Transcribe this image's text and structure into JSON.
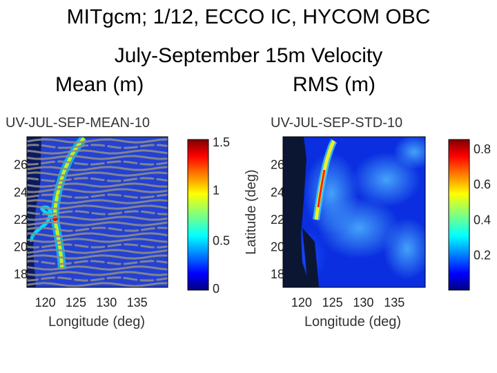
{
  "slide": {
    "title_line1": "MITgcm; 1/12, ECCO IC, HYCOM OBC",
    "title_line2": "July-September 15m Velocity",
    "subtitle_mean": "Mean (m)",
    "subtitle_rms": "RMS (m)"
  },
  "colors": {
    "jet": [
      "#00007f",
      "#0000ff",
      "#007fff",
      "#00ffff",
      "#7fff7f",
      "#ffff00",
      "#ff7f00",
      "#ff0000",
      "#7f0000"
    ],
    "land": "#0b1633",
    "vector_gray": "#8c8c8c"
  },
  "chart_data": [
    {
      "type": "heatmap",
      "title": "UV-JUL-SEP-MEAN-10",
      "xlabel": "Longitude (deg)",
      "ylabel": "",
      "xlim": [
        117,
        140
      ],
      "ylim": [
        17,
        28
      ],
      "xticks": [
        "120",
        "125",
        "130",
        "135"
      ],
      "yticks": [
        "26",
        "24",
        "22",
        "20",
        "18"
      ],
      "colorbar": {
        "clim": [
          0,
          1.5
        ],
        "ticks": [
          "1.5",
          "1",
          "0.5",
          "0"
        ]
      }
    },
    {
      "type": "heatmap",
      "title": "UV-JUL-SEP-STD-10",
      "xlabel": "Longitude (deg)",
      "ylabel": "Latitude (deg)",
      "xlim": [
        117,
        140
      ],
      "ylim": [
        17,
        28
      ],
      "xticks": [
        "120",
        "125",
        "130",
        "135"
      ],
      "yticks": [
        "26",
        "24",
        "22",
        "20",
        "18"
      ],
      "colorbar": {
        "clim": [
          0,
          0.85
        ],
        "ticks": [
          "0.8",
          "0.6",
          "0.4",
          "0.2"
        ]
      }
    }
  ]
}
